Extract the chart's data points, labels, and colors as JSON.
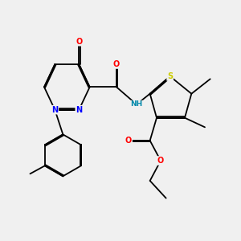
{
  "background_color": "#f0f0f0",
  "bond_color": "#000000",
  "atom_colors": {
    "N": "#0000ff",
    "O": "#ff0000",
    "S": "#cccc00",
    "C": "#000000",
    "H": "#0088aa"
  },
  "figsize": [
    3.0,
    3.0
  ],
  "dpi": 100
}
